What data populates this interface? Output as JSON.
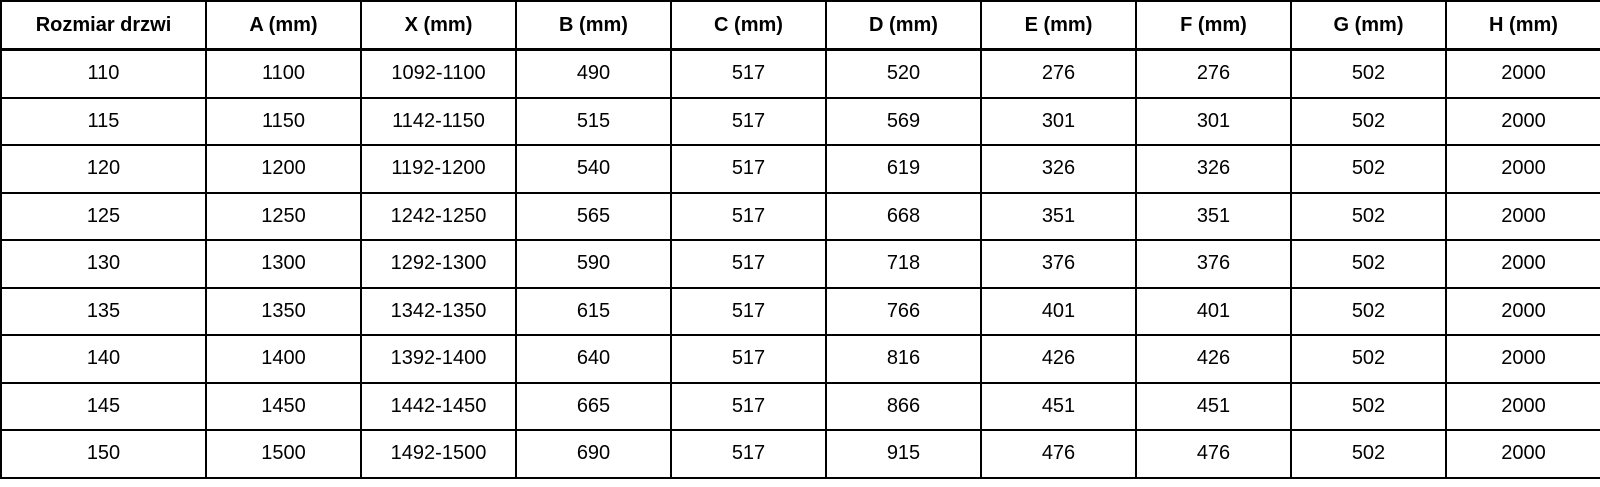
{
  "table": {
    "name": "door-dimensions-table",
    "headers": [
      "Rozmiar drzwi",
      "A (mm)",
      "X (mm)",
      "B (mm)",
      "C (mm)",
      "D (mm)",
      "E (mm)",
      "F (mm)",
      "G (mm)",
      "H (mm)"
    ],
    "rows": [
      [
        "110",
        "1100",
        "1092-1100",
        "490",
        "517",
        "520",
        "276",
        "276",
        "502",
        "2000"
      ],
      [
        "115",
        "1150",
        "1142-1150",
        "515",
        "517",
        "569",
        "301",
        "301",
        "502",
        "2000"
      ],
      [
        "120",
        "1200",
        "1192-1200",
        "540",
        "517",
        "619",
        "326",
        "326",
        "502",
        "2000"
      ],
      [
        "125",
        "1250",
        "1242-1250",
        "565",
        "517",
        "668",
        "351",
        "351",
        "502",
        "2000"
      ],
      [
        "130",
        "1300",
        "1292-1300",
        "590",
        "517",
        "718",
        "376",
        "376",
        "502",
        "2000"
      ],
      [
        "135",
        "1350",
        "1342-1350",
        "615",
        "517",
        "766",
        "401",
        "401",
        "502",
        "2000"
      ],
      [
        "140",
        "1400",
        "1392-1400",
        "640",
        "517",
        "816",
        "426",
        "426",
        "502",
        "2000"
      ],
      [
        "145",
        "1450",
        "1442-1450",
        "665",
        "517",
        "866",
        "451",
        "451",
        "502",
        "2000"
      ],
      [
        "150",
        "1500",
        "1492-1500",
        "690",
        "517",
        "915",
        "476",
        "476",
        "502",
        "2000"
      ]
    ],
    "colors": {
      "border": "#000000",
      "text": "#000000",
      "background": "#ffffff"
    }
  }
}
